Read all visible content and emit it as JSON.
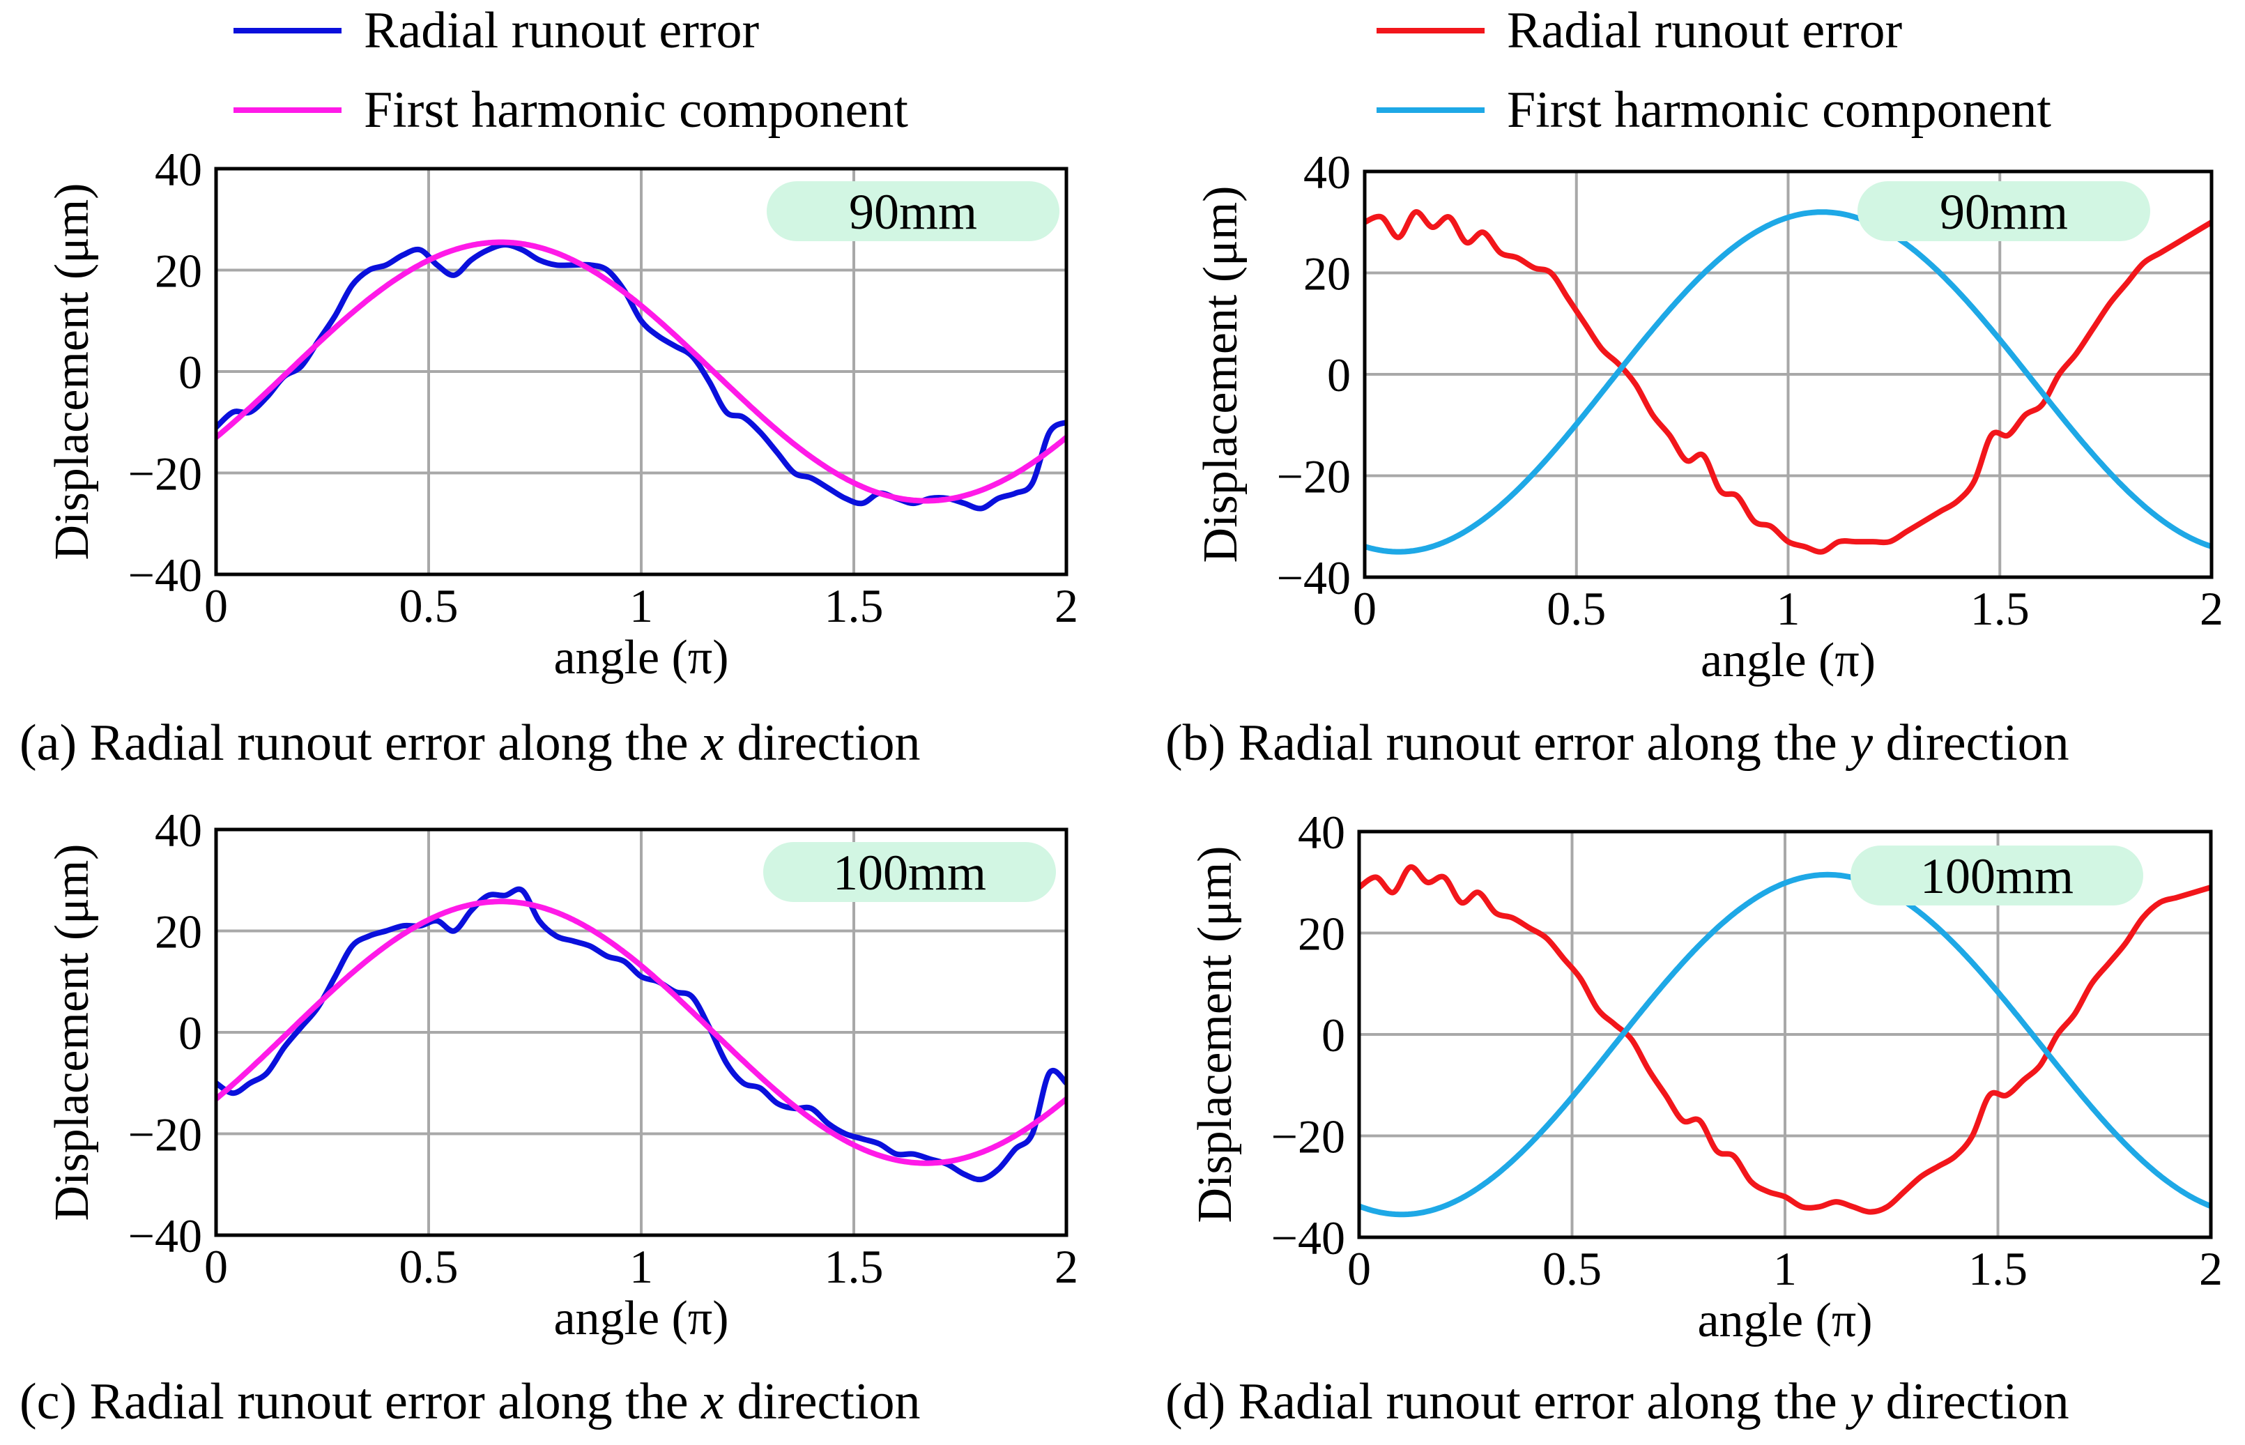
{
  "colors": {
    "x_measured": "#0A10DC",
    "x_harmonic": "#FF1AE8",
    "y_measured": "#F2161B",
    "y_harmonic": "#1EA8E6",
    "badge": "#D2F6E3",
    "grid": "#A8A8A8"
  },
  "legend_left": {
    "measured": "Radial runout error",
    "harmonic": "First harmonic component"
  },
  "legend_right": {
    "measured": "Radial runout error",
    "harmonic": "First harmonic component"
  },
  "chart_data": [
    {
      "id": "a",
      "type": "line",
      "badge": "90mm",
      "caption": {
        "prefix": "(a) Radial runout error along the ",
        "var": "x",
        "suffix": " direction"
      },
      "xlabel": "angle (π)",
      "ylabel": "Displacement (μm)",
      "xlim": [
        0,
        2
      ],
      "ylim": [
        -40,
        40
      ],
      "xticks": [
        0,
        0.5,
        1,
        1.5,
        2
      ],
      "xtick_labels": [
        "0",
        "0.5",
        "1",
        "1.5",
        "2"
      ],
      "yticks": [
        40,
        20,
        0,
        -20,
        -40
      ],
      "ytick_labels": [
        "40",
        "20",
        "0",
        "−20",
        "−40"
      ],
      "series": [
        {
          "name": "Radial runout error",
          "role": "measured",
          "x": [
            0,
            0.04,
            0.08,
            0.12,
            0.16,
            0.2,
            0.24,
            0.28,
            0.32,
            0.36,
            0.4,
            0.44,
            0.48,
            0.52,
            0.56,
            0.6,
            0.64,
            0.68,
            0.72,
            0.76,
            0.8,
            0.84,
            0.88,
            0.92,
            0.96,
            1.0,
            1.04,
            1.08,
            1.12,
            1.16,
            1.2,
            1.24,
            1.28,
            1.32,
            1.36,
            1.4,
            1.44,
            1.48,
            1.52,
            1.56,
            1.6,
            1.64,
            1.68,
            1.72,
            1.76,
            1.8,
            1.84,
            1.88,
            1.92,
            1.96,
            2.0
          ],
          "y": [
            -11,
            -8,
            -8,
            -5,
            -1,
            1,
            6,
            11,
            17,
            20,
            21,
            23,
            24,
            21,
            19,
            22,
            24,
            25,
            24,
            22,
            21,
            21,
            21,
            20,
            16,
            10,
            7,
            5,
            3,
            -2,
            -8,
            -9,
            -12,
            -16,
            -20,
            -21,
            -23,
            -25,
            -26,
            -24,
            -25,
            -26,
            -25,
            -25,
            -26,
            -27,
            -25,
            -24,
            -22,
            -12,
            -10
          ]
        },
        {
          "name": "First harmonic component",
          "role": "harmonic",
          "amp": 25.5,
          "phase_pi": 0.17,
          "offset": 0
        }
      ]
    },
    {
      "id": "b",
      "type": "line",
      "badge": "90mm",
      "caption": {
        "prefix": "(b) Radial runout error along the ",
        "var": "y",
        "suffix": " direction"
      },
      "xlabel": "angle (π)",
      "ylabel": "Displacement (μm)",
      "xlim": [
        0,
        2
      ],
      "ylim": [
        -40,
        40
      ],
      "xticks": [
        0,
        0.5,
        1,
        1.5,
        2
      ],
      "xtick_labels": [
        "0",
        "0.5",
        "1",
        "1.5",
        "2"
      ],
      "yticks": [
        40,
        20,
        0,
        -20,
        -40
      ],
      "ytick_labels": [
        "40",
        "20",
        "0",
        "−20",
        "−40"
      ],
      "series": [
        {
          "name": "Radial runout error",
          "role": "measured",
          "x": [
            0,
            0.04,
            0.08,
            0.12,
            0.16,
            0.2,
            0.24,
            0.28,
            0.32,
            0.36,
            0.4,
            0.44,
            0.48,
            0.52,
            0.56,
            0.6,
            0.64,
            0.68,
            0.72,
            0.76,
            0.8,
            0.84,
            0.88,
            0.92,
            0.96,
            1.0,
            1.04,
            1.08,
            1.12,
            1.16,
            1.2,
            1.24,
            1.28,
            1.32,
            1.36,
            1.4,
            1.44,
            1.48,
            1.52,
            1.56,
            1.6,
            1.64,
            1.68,
            1.72,
            1.76,
            1.8,
            1.84,
            1.88,
            1.92,
            1.96,
            2.0
          ],
          "y": [
            30,
            31,
            27,
            32,
            29,
            31,
            26,
            28,
            24,
            23,
            21,
            20,
            15,
            10,
            5,
            2,
            -2,
            -8,
            -12,
            -17,
            -16,
            -23,
            -24,
            -29,
            -30,
            -33,
            -34,
            -35,
            -33,
            -33,
            -33,
            -33,
            -31,
            -29,
            -27,
            -25,
            -21,
            -12,
            -12,
            -8,
            -6,
            0,
            4,
            9,
            14,
            18,
            22,
            24,
            26,
            28,
            30
          ]
        },
        {
          "name": "First harmonic component",
          "role": "harmonic",
          "amp": 33.5,
          "phase_pi": 0.58,
          "offset": -1.5
        }
      ]
    },
    {
      "id": "c",
      "type": "line",
      "badge": "100mm",
      "caption": {
        "prefix": "(c) Radial runout error along the ",
        "var": "x",
        "suffix": " direction"
      },
      "xlabel": "angle (π)",
      "ylabel": "Displacement (μm)",
      "xlim": [
        0,
        2
      ],
      "ylim": [
        -40,
        40
      ],
      "xticks": [
        0,
        0.5,
        1,
        1.5,
        2
      ],
      "xtick_labels": [
        "0",
        "0.5",
        "1",
        "1.5",
        "2"
      ],
      "yticks": [
        40,
        20,
        0,
        -20,
        -40
      ],
      "ytick_labels": [
        "40",
        "20",
        "0",
        "−20",
        "−40"
      ],
      "series": [
        {
          "name": "Radial runout error",
          "role": "measured",
          "x": [
            0,
            0.04,
            0.08,
            0.12,
            0.16,
            0.2,
            0.24,
            0.28,
            0.32,
            0.36,
            0.4,
            0.44,
            0.48,
            0.52,
            0.56,
            0.6,
            0.64,
            0.68,
            0.72,
            0.76,
            0.8,
            0.84,
            0.88,
            0.92,
            0.96,
            1.0,
            1.04,
            1.08,
            1.12,
            1.16,
            1.2,
            1.24,
            1.28,
            1.32,
            1.36,
            1.4,
            1.44,
            1.48,
            1.52,
            1.56,
            1.6,
            1.64,
            1.68,
            1.72,
            1.76,
            1.8,
            1.84,
            1.88,
            1.92,
            1.96,
            2.0
          ],
          "y": [
            -10,
            -12,
            -10,
            -8,
            -3,
            1,
            5,
            11,
            17,
            19,
            20,
            21,
            21,
            22,
            20,
            24,
            27,
            27,
            28,
            22,
            19,
            18,
            17,
            15,
            14,
            11,
            10,
            8,
            7,
            1,
            -6,
            -10,
            -11,
            -14,
            -15,
            -15,
            -18,
            -20,
            -21,
            -22,
            -24,
            -24,
            -25,
            -26,
            -28,
            -29,
            -27,
            -23,
            -20,
            -8,
            -10
          ]
        },
        {
          "name": "First harmonic component",
          "role": "harmonic",
          "amp": 25.8,
          "phase_pi": 0.17,
          "offset": 0
        }
      ]
    },
    {
      "id": "d",
      "type": "line",
      "badge": "100mm",
      "caption": {
        "prefix": "(d) Radial runout error along the ",
        "var": "y",
        "suffix": " direction"
      },
      "xlabel": "angle (π)",
      "ylabel": "Displacement (μm)",
      "xlim": [
        0,
        2
      ],
      "ylim": [
        -40,
        40
      ],
      "xticks": [
        0,
        0.5,
        1,
        1.5,
        2
      ],
      "xtick_labels": [
        "0",
        "0.5",
        "1",
        "1.5",
        "2"
      ],
      "yticks": [
        40,
        20,
        0,
        -20,
        -40
      ],
      "ytick_labels": [
        "40",
        "20",
        "0",
        "−20",
        "−40"
      ],
      "series": [
        {
          "name": "Radial runout error",
          "role": "measured",
          "x": [
            0,
            0.04,
            0.08,
            0.12,
            0.16,
            0.2,
            0.24,
            0.28,
            0.32,
            0.36,
            0.4,
            0.44,
            0.48,
            0.52,
            0.56,
            0.6,
            0.64,
            0.68,
            0.72,
            0.76,
            0.8,
            0.84,
            0.88,
            0.92,
            0.96,
            1.0,
            1.04,
            1.08,
            1.12,
            1.16,
            1.2,
            1.24,
            1.28,
            1.32,
            1.36,
            1.4,
            1.44,
            1.48,
            1.52,
            1.56,
            1.6,
            1.64,
            1.68,
            1.72,
            1.76,
            1.8,
            1.84,
            1.88,
            1.92,
            1.96,
            2.0
          ],
          "y": [
            29,
            31,
            28,
            33,
            30,
            31,
            26,
            28,
            24,
            23,
            21,
            19,
            15,
            11,
            5,
            2,
            -1,
            -7,
            -12,
            -17,
            -17,
            -23,
            -24,
            -29,
            -31,
            -32,
            -34,
            -34,
            -33,
            -34,
            -35,
            -34,
            -31,
            -28,
            -26,
            -24,
            -20,
            -12,
            -12,
            -9,
            -6,
            0,
            4,
            10,
            14,
            18,
            23,
            26,
            27,
            28,
            29
          ]
        },
        {
          "name": "First harmonic component",
          "role": "harmonic",
          "amp": 33.5,
          "phase_pi": 0.6,
          "offset": -2
        }
      ]
    }
  ]
}
